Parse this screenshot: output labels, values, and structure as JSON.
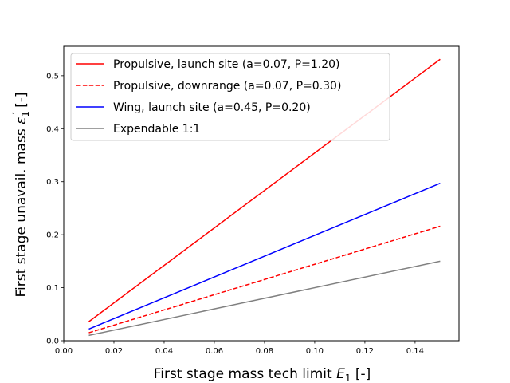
{
  "chart_data": {
    "type": "line",
    "xlabel_main": "First stage mass tech limit ",
    "xlabel_var": "E",
    "xlabel_sub": "1",
    "xlabel_unit": " [-]",
    "ylabel_main": "First stage unavail. mass ",
    "ylabel_var": "ε",
    "ylabel_sub": "1",
    "ylabel_prime": "′",
    "ylabel_unit": " [-]",
    "xlim": [
      0.0,
      0.1575
    ],
    "ylim": [
      0.0,
      0.5555
    ],
    "xticks": [
      0.0,
      0.02,
      0.04,
      0.06,
      0.08,
      0.1,
      0.12,
      0.14
    ],
    "xtick_labels": [
      "0.00",
      "0.02",
      "0.04",
      "0.06",
      "0.08",
      "0.10",
      "0.12",
      "0.14"
    ],
    "yticks": [
      0.0,
      0.1,
      0.2,
      0.3,
      0.4,
      0.5
    ],
    "ytick_labels": [
      "0.0",
      "0.1",
      "0.2",
      "0.3",
      "0.4",
      "0.5"
    ],
    "grid": false,
    "legend_position": "top-left",
    "series": [
      {
        "name": "Propulsive, launch site (a=0.07, P=1.20)",
        "color": "#ff0000",
        "dashed": false,
        "x": [
          0.01,
          0.15
        ],
        "y": [
          0.036,
          0.531
        ]
      },
      {
        "name": "Propulsive, downrange (a=0.07, P=0.30)",
        "color": "#ff0000",
        "dashed": true,
        "x": [
          0.01,
          0.15
        ],
        "y": [
          0.015,
          0.216
        ]
      },
      {
        "name": "Wing, launch site (a=0.45, P=0.20)",
        "color": "#0000ff",
        "dashed": false,
        "x": [
          0.01,
          0.15
        ],
        "y": [
          0.022,
          0.297
        ]
      },
      {
        "name": "Expendable 1:1",
        "color": "#808080",
        "dashed": false,
        "x": [
          0.01,
          0.15
        ],
        "y": [
          0.01,
          0.15
        ]
      }
    ]
  }
}
